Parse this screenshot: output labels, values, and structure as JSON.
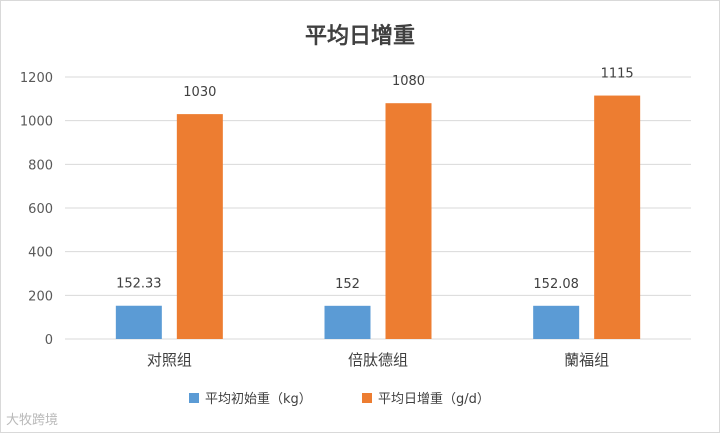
{
  "chart_data": {
    "type": "bar",
    "title": "平均日增重",
    "categories": [
      "对照组",
      "倍肽德组",
      "蘭福组"
    ],
    "series": [
      {
        "name": "平均初始重（kg）",
        "values": [
          152.33,
          152,
          152.08
        ],
        "labels": [
          "152.33",
          "152",
          "152.08"
        ],
        "color": "#5b9bd5"
      },
      {
        "name": "平均日增重（g/d）",
        "values": [
          1030,
          1080,
          1115
        ],
        "labels": [
          "1030",
          "1080",
          "1115"
        ],
        "color": "#ed7d31"
      }
    ],
    "ylim": [
      0,
      1200
    ],
    "yticks": [
      0,
      200,
      400,
      600,
      800,
      1000,
      1200
    ],
    "grid": true,
    "legend_position": "bottom"
  },
  "watermark": "大牧跨境",
  "colors": {
    "gridline": "#d9d9d9",
    "axis_text": "#595959"
  }
}
